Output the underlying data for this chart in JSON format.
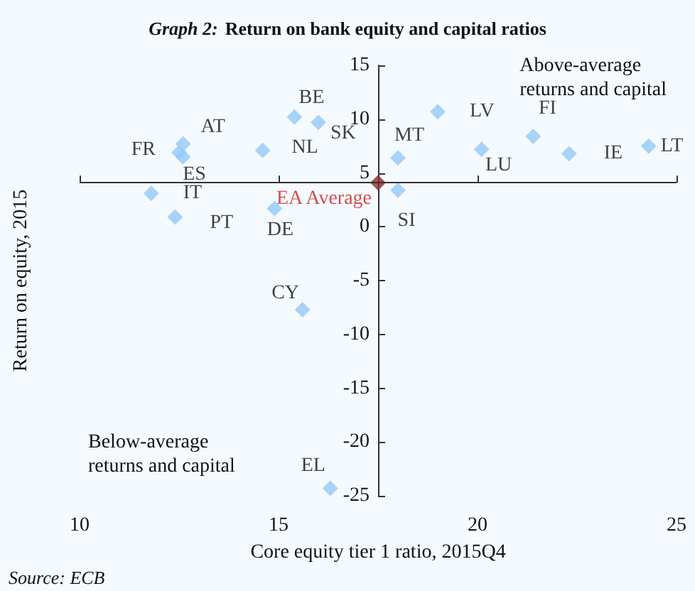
{
  "chart_data": {
    "type": "scatter",
    "title": "Graph 2: Return on bank equity and capital ratios",
    "xlabel": "Core equity tier 1 ratio, 2015Q4",
    "ylabel": "Return on equity, 2015",
    "annotations": [
      "Above-average\nreturns and capital",
      "Below-average\nreturns and capital",
      "Source: ECB"
    ],
    "series": [
      {
        "color": "#94c9f7",
        "marker": "diamond",
        "x": [
          12.6,
          12.5,
          12.6,
          11.8,
          12.4,
          14.6,
          15.4,
          16.0,
          14.9,
          15.6,
          16.3,
          18.0,
          18.0,
          19.0,
          20.1,
          21.4,
          22.3,
          24.3
        ],
        "values": [
          7.7,
          6.9,
          6.5,
          3.1,
          0.9,
          7.1,
          10.2,
          9.7,
          1.7,
          -7.7,
          -24.3,
          6.4,
          3.4,
          10.7,
          7.2,
          8.4,
          6.8,
          7.5
        ],
        "value_labels": [
          "AT",
          "FR",
          "ES",
          "IT",
          "PT",
          "NL",
          "BE",
          "SK",
          "DE",
          "CY",
          "EL",
          "MT",
          "SI",
          "LV",
          "LU",
          "FI",
          "IE",
          "LT"
        ]
      },
      {
        "name": "EA Average",
        "color": "#8e2b2b",
        "marker": "diamond",
        "x": [
          17.5
        ],
        "values": [
          4.1
        ]
      }
    ],
    "xlim": [
      10,
      25
    ],
    "xticks": [
      10,
      15,
      20,
      25
    ],
    "ylim": [
      -25,
      15
    ],
    "yticks": [
      -25,
      -20,
      -15,
      -10,
      -5,
      0,
      5,
      10,
      15
    ],
    "ref_lines": [
      {
        "axis": "y",
        "value": 4.1,
        "color": "#333333",
        "line_style": "solid"
      }
    ],
    "grid": false,
    "legend": false
  }
}
